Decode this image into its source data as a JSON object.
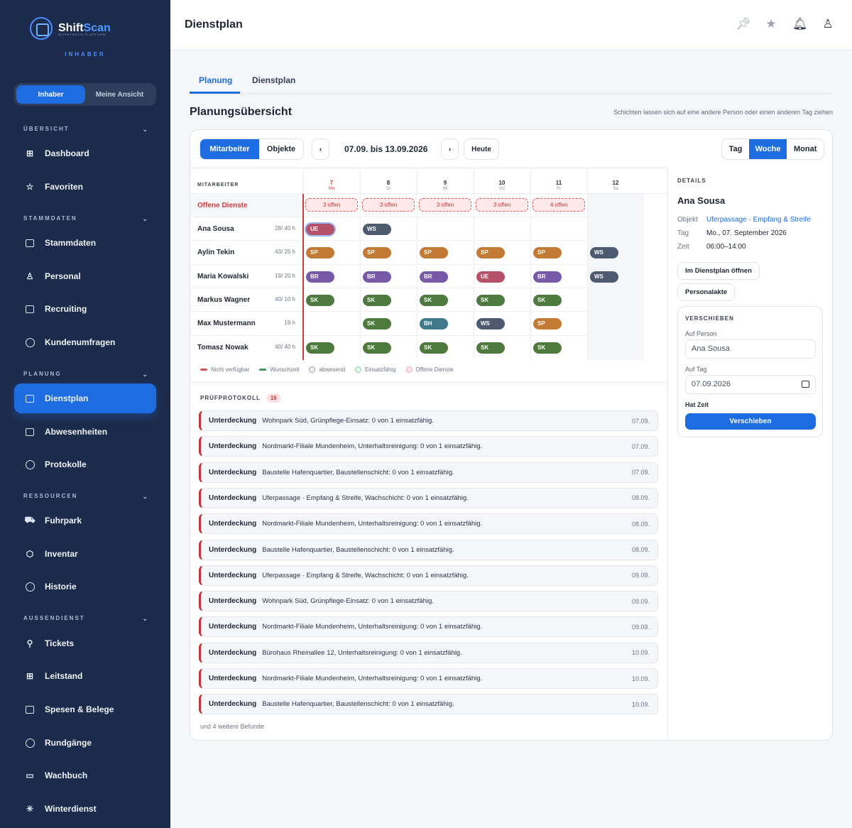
{
  "app": {
    "name_a": "Shift",
    "name_b": "Scan",
    "tagline": "WORKFORCE PLATFORM",
    "role": "INHABER"
  },
  "sidebar": {
    "switch": [
      "Inhaber",
      "Meine Ansicht"
    ],
    "sections": [
      {
        "title": "ÜBERSICHT",
        "items": [
          "Dashboard",
          "Favoriten"
        ]
      },
      {
        "title": "STAMMDATEN",
        "items": [
          "Stammdaten",
          "Personal",
          "Recruiting",
          "Kundenumfragen"
        ]
      },
      {
        "title": "PLANUNG",
        "items": [
          "Dienstplan",
          "Abwesenheiten",
          "Protokolle"
        ]
      },
      {
        "title": "RESSOURCEN",
        "items": [
          "Fuhrpark",
          "Inventar",
          "Historie"
        ]
      },
      {
        "title": "AUSSENDIENST",
        "items": [
          "Tickets",
          "Leitstand",
          "Spesen & Belege",
          "Rundgänge",
          "Wachbuch",
          "Winterdienst"
        ]
      }
    ]
  },
  "header": {
    "title": "Dienstplan"
  },
  "tabs": [
    "Planung",
    "Dienstplan"
  ],
  "main": {
    "title": "Planungsübersicht",
    "hint": "Schichten lassen sich auf eine andere Person oder einen anderen Tag ziehen"
  },
  "toolbar": {
    "group": [
      "Mitarbeiter",
      "Objekte"
    ],
    "prev": "‹",
    "next": "›",
    "range": "07.09. bis 13.09.2026",
    "today": "Heute",
    "views": [
      "Tag",
      "Woche",
      "Monat"
    ]
  },
  "grid": {
    "employees_header": "MITARBEITER",
    "open_label": "Offene Dienste",
    "days": [
      {
        "n": "7",
        "d": "Mo"
      },
      {
        "n": "8",
        "d": "Di"
      },
      {
        "n": "9",
        "d": "Mi"
      },
      {
        "n": "10",
        "d": "Do"
      },
      {
        "n": "11",
        "d": "Fr"
      },
      {
        "n": "12",
        "d": "Sa"
      }
    ],
    "open": [
      "3 offen",
      "3 offen",
      "3 offen",
      "3 offen",
      "4 offen",
      ""
    ],
    "rows": [
      {
        "name": "Ana Sousa",
        "hours": "28/ 40 h",
        "shifts": [
          "UE",
          "WS",
          "",
          "",
          "",
          ""
        ]
      },
      {
        "name": "Aylin Tekin",
        "hours": "43/ 25 h",
        "shifts": [
          "SP",
          "SP",
          "SP",
          "SP",
          "SP",
          "WS"
        ]
      },
      {
        "name": "Maria Kowalski",
        "hours": "19/ 20 h",
        "shifts": [
          "BR",
          "BR",
          "BR",
          "UE",
          "BR",
          "WS"
        ]
      },
      {
        "name": "Markus Wagner",
        "hours": "40/ 10 h",
        "shifts": [
          "SK",
          "SK",
          "SK",
          "SK",
          "SK",
          ""
        ]
      },
      {
        "name": "Max Mustermann",
        "hours": "19 h",
        "shifts": [
          "",
          "SK",
          "BH",
          "WS",
          "SP",
          ""
        ]
      },
      {
        "name": "Tomasz Nowak",
        "hours": "40/ 40 h",
        "shifts": [
          "SK",
          "SK",
          "SK",
          "SK",
          "SK",
          ""
        ]
      }
    ],
    "colors": {
      "UE": "#b5526a",
      "WS": "#4e5a70",
      "SP": "#c37a35",
      "BR": "#7859a8",
      "SK": "#4f7a3f",
      "BH": "#3f7a8a"
    }
  },
  "legend": [
    "Nicht verfügbar",
    "Wunschzeit",
    "abwesend",
    "Einsatzfähig",
    "Offene Dienste"
  ],
  "protocol": {
    "title": "PRÜFPROTOKOLL",
    "count": "16",
    "kind": "Unterdeckung",
    "items": [
      {
        "text": "Wohnpark Süd, Grünpflege-Einsatz: 0 von 1 einsatzfähig.",
        "date": "07.09."
      },
      {
        "text": "Nordmarkt-Filiale Mundenheim, Unterhaltsreinigung: 0 von 1 einsatzfähig.",
        "date": "07.09."
      },
      {
        "text": "Baustelle Hafenquartier, Baustellenschicht: 0 von 1 einsatzfähig.",
        "date": "07.09."
      },
      {
        "text": "Uferpassage · Empfang & Streife, Wachschicht: 0 von 1 einsatzfähig.",
        "date": "08.09."
      },
      {
        "text": "Nordmarkt-Filiale Mundenheim, Unterhaltsreinigung: 0 von 1 einsatzfähig.",
        "date": "08.09."
      },
      {
        "text": "Baustelle Hafenquartier, Baustellenschicht: 0 von 1 einsatzfähig.",
        "date": "08.09."
      },
      {
        "text": "Uferpassage · Empfang & Streife, Wachschicht: 0 von 1 einsatzfähig.",
        "date": "09.09."
      },
      {
        "text": "Wohnpark Süd, Grünpflege-Einsatz: 0 von 1 einsatzfähig.",
        "date": "09.09."
      },
      {
        "text": "Nordmarkt-Filiale Mundenheim, Unterhaltsreinigung: 0 von 1 einsatzfähig.",
        "date": "09.09."
      },
      {
        "text": "Bürohaus Rheinallee 12, Unterhaltsreinigung: 0 von 1 einsatzfähig.",
        "date": "10.09."
      },
      {
        "text": "Nordmarkt-Filiale Mundenheim, Unterhaltsreinigung: 0 von 1 einsatzfähig.",
        "date": "10.09."
      },
      {
        "text": "Baustelle Hafenquartier, Baustellenschicht: 0 von 1 einsatzfähig.",
        "date": "10.09."
      }
    ],
    "more": "und 4 weitere Befunde"
  },
  "details": {
    "title": "DETAILS",
    "name": "Ana Sousa",
    "object_label": "Objekt",
    "object": "Uferpassage · Empfang & Streife",
    "day_label": "Tag",
    "day": "Mo., 07. September 2026",
    "time_label": "Zeit",
    "time": "06:00–14:00",
    "open_btn": "Im Dienstplan öffnen",
    "file_btn": "Personalakte",
    "move": {
      "title": "VERSCHIEBEN",
      "person_label": "Auf Person",
      "person": "Ana Sousa",
      "day_label": "Auf Tag",
      "day": "07.09.2026",
      "time_label": "Hat Zeit",
      "button": "Verschieben"
    }
  }
}
